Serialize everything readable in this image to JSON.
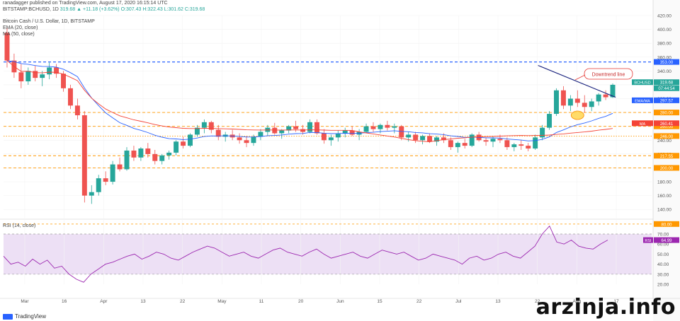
{
  "header": {
    "published": "ranadagger published on TradingView.com, August 17, 2020 16:15:14 UTC",
    "symbol": "BITSTAMP:BCHUSD, 1D",
    "ohlc": "319.68 ▲ +11.18 (+3.62%) O:307.43 H:322.43 L:301.62 C:319.68",
    "title": "Bitcoin Cash / U.S. Dollar, 1D, BITSTAMP",
    "ema_label": "EMA (20, close)",
    "ma_label": "MA (50, close)",
    "rsi_label": "RSI (14, close)"
  },
  "watermark": "arzinja.info",
  "logo_text": "TradingView",
  "colors": {
    "up": "#26a69a",
    "down": "#ef5350",
    "ema": "#2962ff",
    "ma": "#f44336",
    "dash_blue": "#2962ff",
    "dash_orange": "#ff9800",
    "rsi": "#9c27b0",
    "rsi_band": "#ede0f5"
  },
  "chart_data": [
    {
      "type": "candlestick",
      "title": "Bitcoin Cash / U.S. Dollar, 1D, BITSTAMP",
      "ylim": [
        130,
        420
      ],
      "y_ticks": [
        140,
        160,
        180,
        200,
        220,
        240,
        260,
        280,
        300,
        320,
        340,
        360,
        380,
        400,
        420
      ],
      "x_ticks": [
        "Mar",
        "16",
        "Apr",
        "13",
        "22",
        "May",
        "11",
        "20",
        "Jun",
        "15",
        "22",
        "Jul",
        "13",
        "22",
        "Aug",
        "17"
      ],
      "horizontal_levels": [
        {
          "value": 353.0,
          "label": "353.00",
          "style": "dashed-blue"
        },
        {
          "value": 280.0,
          "label": "280.00",
          "style": "dashed-orange"
        },
        {
          "value": 260.0,
          "label": "260.00",
          "style": "dashed-orange"
        },
        {
          "value": 246.0,
          "label": "246.00",
          "style": "dotted-orange"
        },
        {
          "value": 217.55,
          "label": "217.55",
          "style": "dashed-orange"
        },
        {
          "value": 200.0,
          "label": "200.00",
          "style": "dashed-orange"
        }
      ],
      "price_labels": [
        {
          "text": "BCHUSD",
          "value": "319.68",
          "extra": "07:44:54"
        },
        {
          "text": "EMA/MA",
          "value": "297.57"
        },
        {
          "text": "MA",
          "value": "260.41"
        }
      ],
      "annotation": "Downtrend line",
      "ohlc_estimate": [
        [
          395,
          402,
          345,
          355
        ],
        [
          355,
          365,
          330,
          338
        ],
        [
          338,
          350,
          315,
          325
        ],
        [
          325,
          345,
          320,
          340
        ],
        [
          340,
          348,
          325,
          330
        ],
        [
          330,
          340,
          318,
          335
        ],
        [
          335,
          352,
          328,
          345
        ],
        [
          345,
          350,
          330,
          336
        ],
        [
          336,
          340,
          310,
          315
        ],
        [
          315,
          320,
          285,
          290
        ],
        [
          290,
          300,
          270,
          276
        ],
        [
          276,
          282,
          150,
          160
        ],
        [
          160,
          175,
          148,
          165
        ],
        [
          165,
          190,
          160,
          185
        ],
        [
          185,
          195,
          175,
          180
        ],
        [
          180,
          210,
          176,
          205
        ],
        [
          205,
          215,
          195,
          198
        ],
        [
          198,
          230,
          196,
          225
        ],
        [
          225,
          232,
          210,
          215
        ],
        [
          215,
          230,
          210,
          228
        ],
        [
          228,
          236,
          215,
          220
        ],
        [
          220,
          226,
          205,
          210
        ],
        [
          210,
          220,
          205,
          218
        ],
        [
          218,
          225,
          212,
          222
        ],
        [
          222,
          240,
          218,
          238
        ],
        [
          238,
          245,
          228,
          232
        ],
        [
          232,
          250,
          230,
          248
        ],
        [
          248,
          262,
          245,
          258
        ],
        [
          258,
          270,
          250,
          266
        ],
        [
          266,
          268,
          250,
          255
        ],
        [
          255,
          262,
          240,
          245
        ],
        [
          245,
          252,
          238,
          248
        ],
        [
          248,
          255,
          240,
          244
        ],
        [
          244,
          250,
          235,
          240
        ],
        [
          240,
          246,
          230,
          236
        ],
        [
          236,
          248,
          232,
          245
        ],
        [
          245,
          256,
          240,
          252
        ],
        [
          252,
          262,
          246,
          258
        ],
        [
          258,
          265,
          248,
          250
        ],
        [
          250,
          256,
          242,
          254
        ],
        [
          254,
          262,
          250,
          260
        ],
        [
          260,
          268,
          252,
          256
        ],
        [
          256,
          262,
          248,
          252
        ],
        [
          252,
          270,
          250,
          266
        ],
        [
          266,
          270,
          248,
          250
        ],
        [
          250,
          256,
          235,
          240
        ],
        [
          240,
          248,
          232,
          244
        ],
        [
          244,
          254,
          238,
          250
        ],
        [
          250,
          258,
          244,
          254
        ],
        [
          254,
          260,
          246,
          248
        ],
        [
          248,
          256,
          240,
          252
        ],
        [
          252,
          264,
          250,
          260
        ],
        [
          260,
          266,
          252,
          256
        ],
        [
          256,
          264,
          250,
          262
        ],
        [
          262,
          268,
          254,
          258
        ],
        [
          258,
          264,
          250,
          260
        ],
        [
          260,
          262,
          240,
          244
        ],
        [
          244,
          252,
          238,
          248
        ],
        [
          248,
          252,
          236,
          240
        ],
        [
          240,
          248,
          234,
          246
        ],
        [
          246,
          250,
          236,
          238
        ],
        [
          238,
          246,
          232,
          244
        ],
        [
          244,
          250,
          236,
          240
        ],
        [
          240,
          244,
          226,
          230
        ],
        [
          230,
          238,
          222,
          236
        ],
        [
          236,
          242,
          228,
          232
        ],
        [
          232,
          250,
          230,
          248
        ],
        [
          248,
          252,
          238,
          240
        ],
        [
          240,
          244,
          232,
          238
        ],
        [
          238,
          246,
          230,
          242
        ],
        [
          242,
          248,
          236,
          240
        ],
        [
          240,
          244,
          226,
          230
        ],
        [
          230,
          236,
          224,
          234
        ],
        [
          234,
          240,
          226,
          232
        ],
        [
          232,
          236,
          224,
          228
        ],
        [
          228,
          248,
          226,
          244
        ],
        [
          244,
          262,
          240,
          258
        ],
        [
          258,
          282,
          255,
          278
        ],
        [
          278,
          315,
          275,
          312
        ],
        [
          312,
          318,
          285,
          290
        ],
        [
          290,
          305,
          282,
          300
        ],
        [
          300,
          312,
          288,
          294
        ],
        [
          294,
          305,
          280,
          288
        ],
        [
          288,
          300,
          282,
          296
        ],
        [
          296,
          308,
          290,
          306
        ],
        [
          306,
          312,
          298,
          302
        ],
        [
          302,
          322,
          301,
          320
        ]
      ]
    },
    {
      "type": "line",
      "title": "RSI (14, close)",
      "ylim": [
        20,
        82
      ],
      "y_ticks": [
        20,
        30,
        40,
        50,
        60,
        70,
        80
      ],
      "levels": [
        {
          "value": 80,
          "label": "80.00"
        },
        {
          "value": 70
        },
        {
          "value": 30
        }
      ],
      "last_value": "64.99",
      "values": [
        48,
        40,
        42,
        38,
        45,
        40,
        44,
        36,
        38,
        30,
        25,
        22,
        30,
        35,
        40,
        42,
        45,
        48,
        50,
        45,
        48,
        52,
        50,
        46,
        44,
        48,
        52,
        55,
        58,
        56,
        52,
        48,
        50,
        52,
        48,
        46,
        50,
        54,
        56,
        52,
        50,
        48,
        52,
        55,
        50,
        46,
        48,
        50,
        52,
        48,
        46,
        50,
        54,
        52,
        50,
        52,
        48,
        44,
        46,
        50,
        48,
        46,
        44,
        40,
        46,
        48,
        44,
        46,
        50,
        52,
        48,
        46,
        52,
        58,
        70,
        78,
        62,
        60,
        64,
        58,
        56,
        55,
        60,
        64
      ]
    }
  ]
}
